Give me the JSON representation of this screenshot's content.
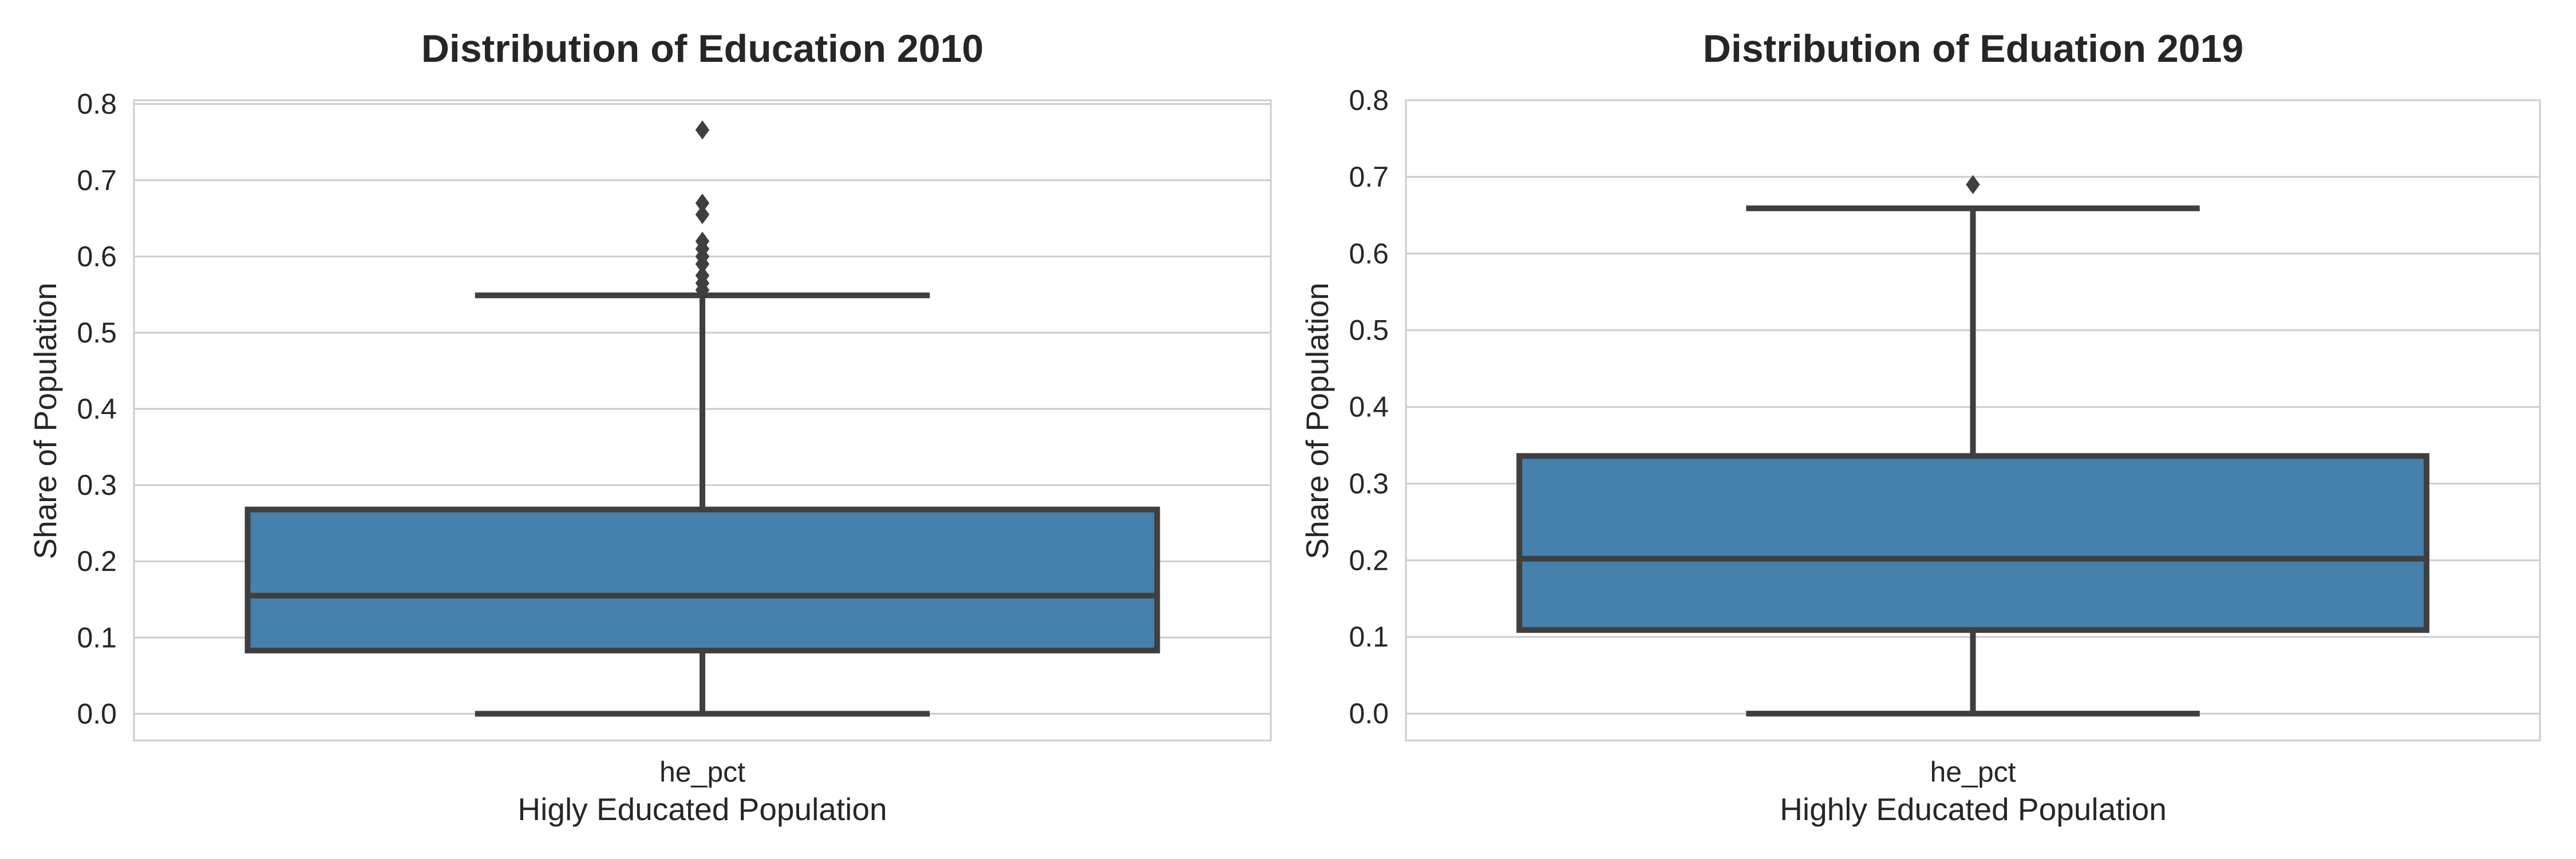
{
  "colors": {
    "box_fill": "#4680ad",
    "line": "#3f3f3f",
    "grid": "#cccccc",
    "text": "#262626"
  },
  "chart_data": [
    {
      "type": "box",
      "title": "Distribution of Education 2010",
      "xlabel": "Higly Educated Population",
      "ylabel": "Share of Population",
      "categories": [
        "he_pct"
      ],
      "ylim": [
        -0.035,
        0.805
      ],
      "yticks": [
        0.0,
        0.1,
        0.2,
        0.3,
        0.4,
        0.5,
        0.6,
        0.7,
        0.8
      ],
      "ytick_labels": [
        "0.0",
        "0.1",
        "0.2",
        "0.3",
        "0.4",
        "0.5",
        "0.6",
        "0.7",
        "0.8"
      ],
      "grid": true,
      "legend": "none",
      "boxes": [
        {
          "category": "he_pct",
          "whisker_low": 0.0,
          "q1": 0.083,
          "median": 0.155,
          "q3": 0.268,
          "whisker_high": 0.549,
          "outliers": [
            0.556,
            0.565,
            0.575,
            0.59,
            0.6,
            0.61,
            0.62,
            0.655,
            0.67,
            0.766
          ]
        }
      ]
    },
    {
      "type": "box",
      "title": "Distribution of Eduation 2019",
      "xlabel": "Highly Educated Population",
      "ylabel": "Share of Population",
      "categories": [
        "he_pct"
      ],
      "ylim": [
        -0.035,
        0.8
      ],
      "yticks": [
        0.0,
        0.1,
        0.2,
        0.3,
        0.4,
        0.5,
        0.6,
        0.7,
        0.8
      ],
      "ytick_labels": [
        "0.0",
        "0.1",
        "0.2",
        "0.3",
        "0.4",
        "0.5",
        "0.6",
        "0.7",
        "0.8"
      ],
      "grid": true,
      "legend": "none",
      "boxes": [
        {
          "category": "he_pct",
          "whisker_low": 0.0,
          "q1": 0.109,
          "median": 0.202,
          "q3": 0.336,
          "whisker_high": 0.659,
          "outliers": [
            0.69
          ]
        }
      ]
    }
  ]
}
